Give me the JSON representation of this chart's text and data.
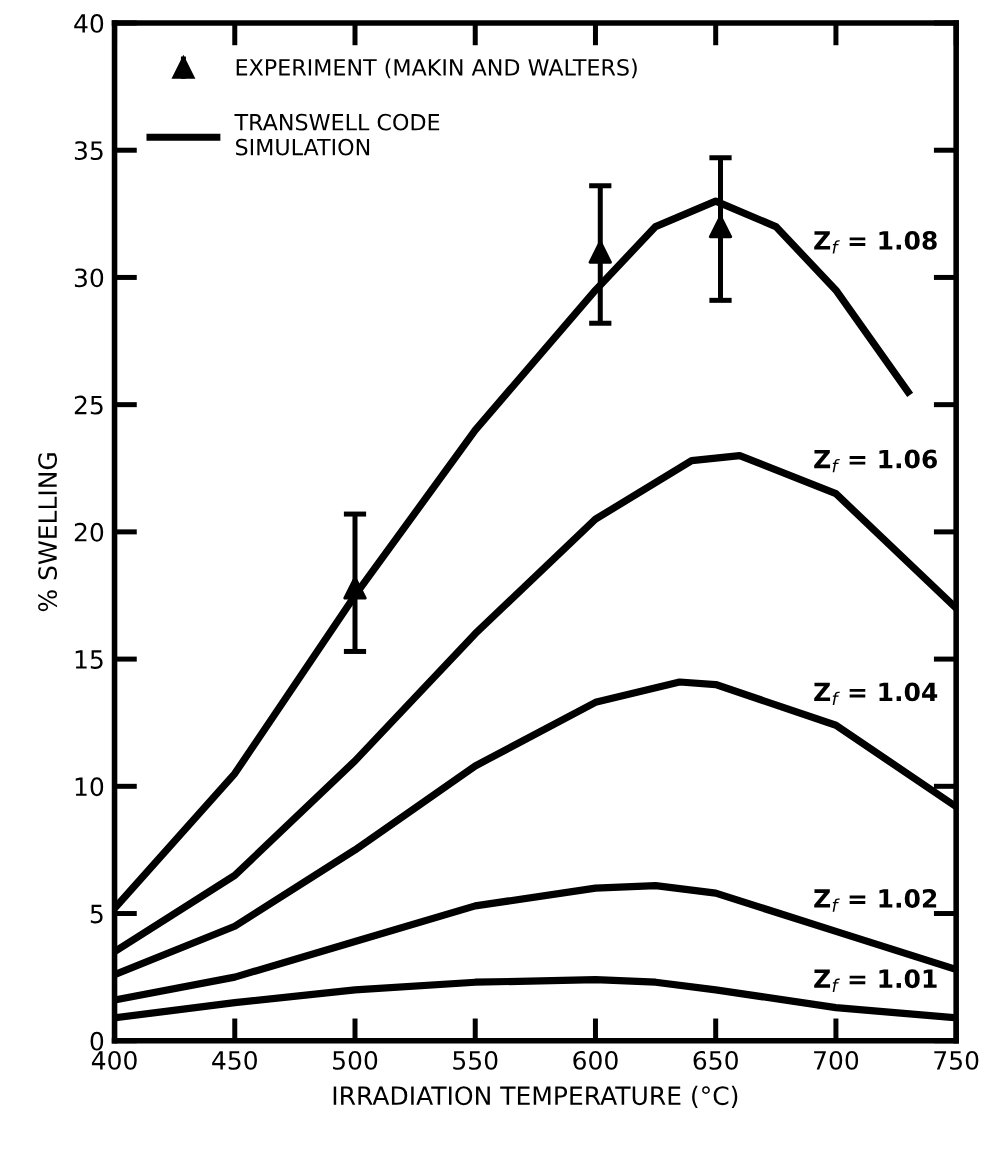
{
  "chart_data": {
    "type": "line",
    "xlabel": "IRRADIATION TEMPERATURE (°C)",
    "ylabel": "% SWELLING",
    "xlim": [
      400,
      750
    ],
    "xticks": [
      400,
      450,
      500,
      550,
      600,
      650,
      700,
      750
    ],
    "ylim": [
      0,
      40
    ],
    "yticks": [
      0,
      5,
      10,
      15,
      20,
      25,
      30,
      35,
      40
    ],
    "grid": false,
    "legend": "top left",
    "legend_title": "TRANSWELL CODE\nSIMULATION",
    "series": [
      {
        "name": "Z$_{f}$ = 1.08",
        "color": "#000000",
        "x": [
          400,
          450,
          500,
          550,
          600,
          625,
          650,
          675,
          700,
          730
        ],
        "values": [
          5.2,
          10.5,
          17.5,
          24,
          29.5,
          32,
          33,
          32,
          29.5,
          25.5
        ]
      },
      {
        "name": "Z$_{f}$ = 1.06",
        "color": "#000000",
        "x": [
          400,
          450,
          500,
          550,
          600,
          640,
          660,
          700,
          750
        ],
        "values": [
          3.5,
          6.5,
          11,
          16,
          20.5,
          22.8,
          23,
          21.5,
          17
        ]
      },
      {
        "name": "Z$_{f}$ = 1.04",
        "color": "#000000",
        "x": [
          400,
          450,
          500,
          550,
          600,
          635,
          650,
          700,
          750
        ],
        "values": [
          2.6,
          4.5,
          7.5,
          10.8,
          13.3,
          14.1,
          14,
          12.4,
          9.2
        ]
      },
      {
        "name": "Z$_{f}$ = 1.02",
        "color": "#000000",
        "x": [
          400,
          450,
          500,
          550,
          600,
          625,
          650,
          700,
          750
        ],
        "values": [
          1.6,
          2.5,
          3.9,
          5.3,
          6,
          6.1,
          5.8,
          4.3,
          2.8
        ]
      },
      {
        "name": "Z$_{f}$ = 1.01",
        "color": "#000000",
        "x": [
          400,
          450,
          500,
          550,
          600,
          625,
          650,
          700,
          750
        ],
        "values": [
          0.9,
          1.5,
          2,
          2.3,
          2.4,
          2.3,
          2,
          1.3,
          0.9
        ]
      },
      {
        "type": "scatter",
        "name": "EXPERIMENT (MAKIN AND WALTERS)",
        "color": "#000000",
        "marker": "triangle",
        "x": [
          500,
          602,
          652
        ],
        "values": [
          17.8,
          31,
          32
        ],
        "errors": [
          [
            15.3,
            20.7
          ],
          [
            28.2,
            33.6
          ],
          [
            29.1,
            34.7
          ]
        ]
      }
    ]
  }
}
